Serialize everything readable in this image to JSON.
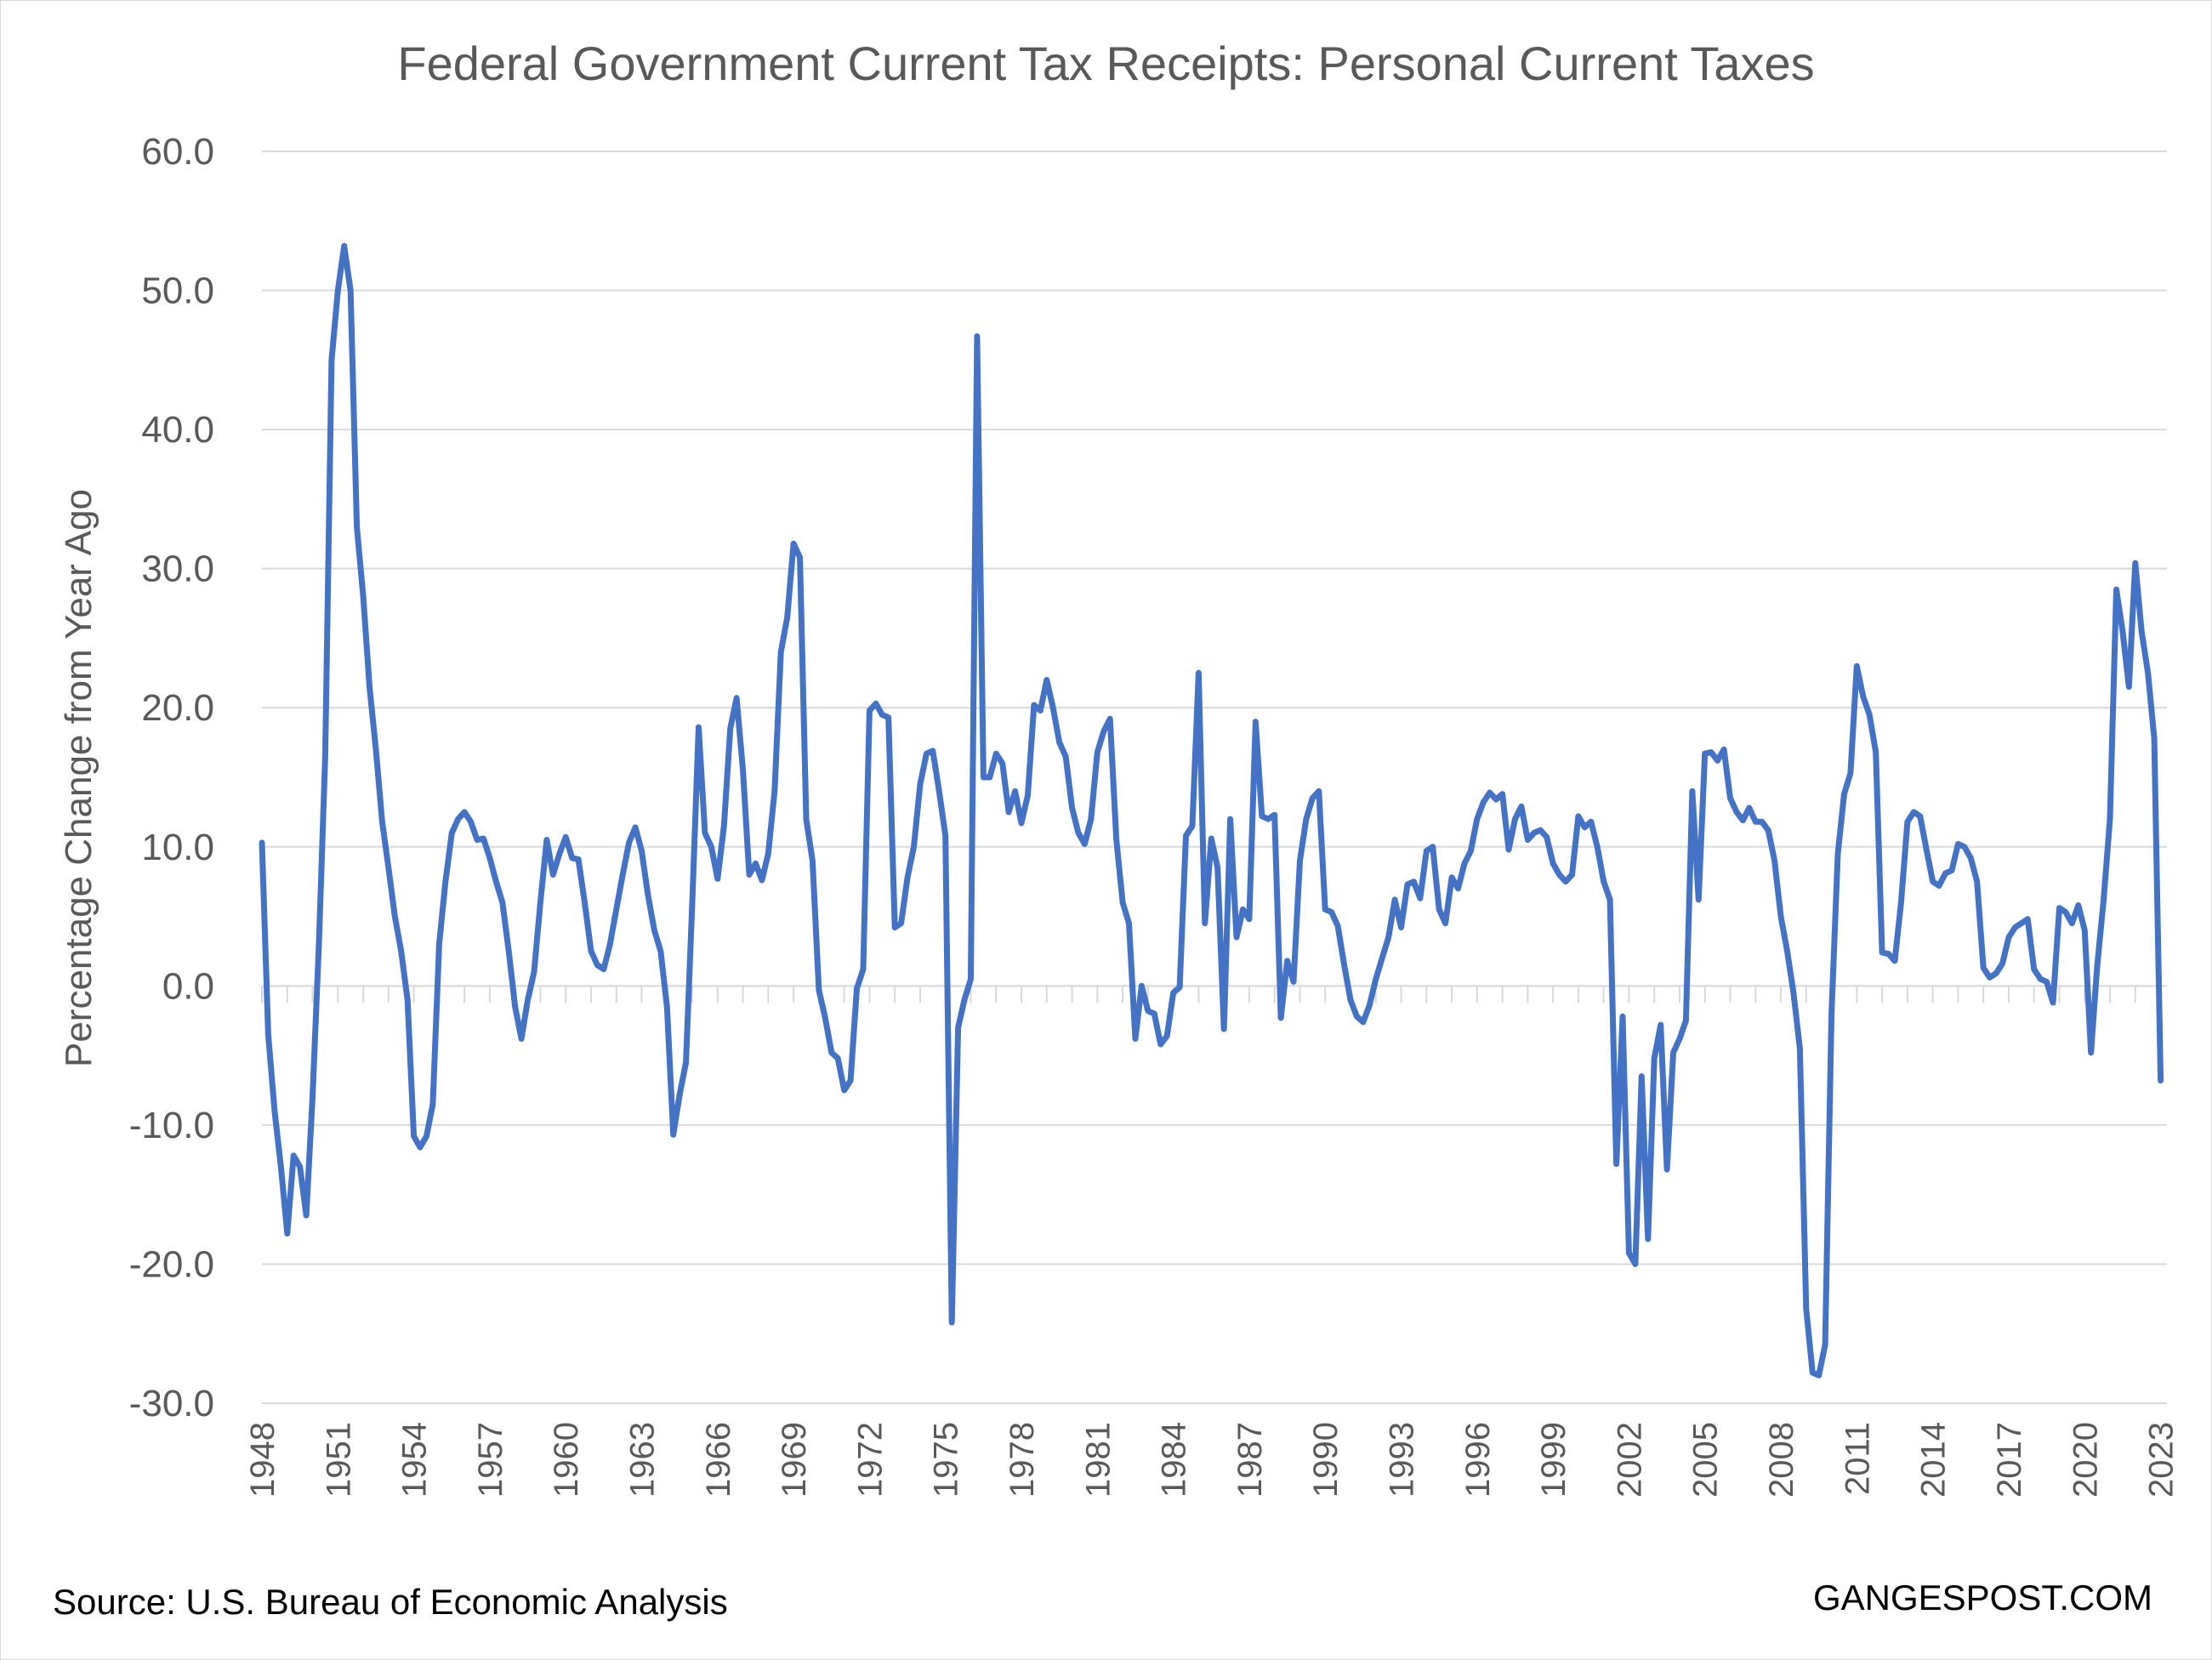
{
  "chart_data": {
    "type": "line",
    "title": "Federal Government Current Tax Receipts: Personal Current Taxes",
    "xlabel": "",
    "ylabel": "Percentage Change from Year Ago",
    "ylim": [
      -30,
      60
    ],
    "xlim": [
      1948,
      2023.25
    ],
    "yticks": [
      "-30.0",
      "-20.0",
      "-10.0",
      "0.0",
      "10.0",
      "20.0",
      "30.0",
      "40.0",
      "50.0",
      "60.0"
    ],
    "xticks": [
      "1948",
      "1951",
      "1954",
      "1957",
      "1960",
      "1963",
      "1966",
      "1969",
      "1972",
      "1975",
      "1978",
      "1981",
      "1984",
      "1987",
      "1990",
      "1993",
      "1996",
      "1999",
      "2002",
      "2005",
      "2008",
      "2011",
      "2014",
      "2017",
      "2020",
      "2023"
    ],
    "grid": true,
    "legend": "none",
    "series": [
      {
        "color": "#4472c4",
        "points": [
          [
            1948.0,
            10.3
          ],
          [
            1948.25,
            -3.5
          ],
          [
            1948.5,
            -9.0
          ],
          [
            1948.75,
            -13.0
          ],
          [
            1949.0,
            -17.8
          ],
          [
            1949.25,
            -12.2
          ],
          [
            1949.5,
            -13.0
          ],
          [
            1949.75,
            -16.5
          ],
          [
            1950.0,
            -8.0
          ],
          [
            1950.25,
            3.0
          ],
          [
            1950.5,
            16.5
          ],
          [
            1950.75,
            45.0
          ],
          [
            1951.0,
            50.0
          ],
          [
            1951.25,
            53.2
          ],
          [
            1951.5,
            50.0
          ],
          [
            1951.75,
            33.0
          ],
          [
            1952.0,
            28.0
          ],
          [
            1952.25,
            21.5
          ],
          [
            1952.5,
            17.0
          ],
          [
            1952.75,
            11.8
          ],
          [
            1953.0,
            8.5
          ],
          [
            1953.25,
            5.0
          ],
          [
            1953.5,
            2.5
          ],
          [
            1953.75,
            -1.0
          ],
          [
            1954.0,
            -10.8
          ],
          [
            1954.25,
            -11.6
          ],
          [
            1954.5,
            -10.8
          ],
          [
            1954.75,
            -8.5
          ],
          [
            1955.0,
            3.0
          ],
          [
            1955.25,
            7.5
          ],
          [
            1955.5,
            11.0
          ],
          [
            1955.75,
            12.0
          ],
          [
            1956.0,
            12.5
          ],
          [
            1956.25,
            11.8
          ],
          [
            1956.5,
            10.5
          ],
          [
            1956.75,
            10.6
          ],
          [
            1957.0,
            9.2
          ],
          [
            1957.25,
            7.5
          ],
          [
            1957.5,
            6.0
          ],
          [
            1957.75,
            2.5
          ],
          [
            1958.0,
            -1.5
          ],
          [
            1958.25,
            -3.8
          ],
          [
            1958.5,
            -1.0
          ],
          [
            1958.75,
            1.0
          ],
          [
            1959.0,
            6.0
          ],
          [
            1959.25,
            10.5
          ],
          [
            1959.5,
            8.0
          ],
          [
            1959.75,
            9.5
          ],
          [
            1960.0,
            10.7
          ],
          [
            1960.25,
            9.2
          ],
          [
            1960.5,
            9.1
          ],
          [
            1960.75,
            6.0
          ],
          [
            1961.0,
            2.5
          ],
          [
            1961.25,
            1.5
          ],
          [
            1961.5,
            1.2
          ],
          [
            1961.75,
            3.0
          ],
          [
            1962.0,
            5.5
          ],
          [
            1962.25,
            8.0
          ],
          [
            1962.5,
            10.3
          ],
          [
            1962.75,
            11.4
          ],
          [
            1963.0,
            9.7
          ],
          [
            1963.25,
            6.5
          ],
          [
            1963.5,
            4.0
          ],
          [
            1963.75,
            2.5
          ],
          [
            1964.0,
            -1.5
          ],
          [
            1964.25,
            -10.7
          ],
          [
            1964.5,
            -7.8
          ],
          [
            1964.75,
            -5.5
          ],
          [
            1965.0,
            6.0
          ],
          [
            1965.25,
            18.6
          ],
          [
            1965.5,
            11.0
          ],
          [
            1965.75,
            10.0
          ],
          [
            1966.0,
            7.7
          ],
          [
            1966.25,
            11.5
          ],
          [
            1966.5,
            18.5
          ],
          [
            1966.75,
            20.7
          ],
          [
            1967.0,
            15.5
          ],
          [
            1967.25,
            8.0
          ],
          [
            1967.5,
            8.8
          ],
          [
            1967.75,
            7.6
          ],
          [
            1968.0,
            9.5
          ],
          [
            1968.25,
            14.0
          ],
          [
            1968.5,
            24.0
          ],
          [
            1968.75,
            26.5
          ],
          [
            1969.0,
            31.8
          ],
          [
            1969.25,
            30.8
          ],
          [
            1969.5,
            12.0
          ],
          [
            1969.75,
            9.0
          ],
          [
            1970.0,
            -0.3
          ],
          [
            1970.25,
            -2.3
          ],
          [
            1970.5,
            -4.8
          ],
          [
            1970.75,
            -5.2
          ],
          [
            1971.0,
            -7.5
          ],
          [
            1971.25,
            -6.8
          ],
          [
            1971.5,
            -0.2
          ],
          [
            1971.75,
            1.2
          ],
          [
            1972.0,
            19.8
          ],
          [
            1972.25,
            20.3
          ],
          [
            1972.5,
            19.5
          ],
          [
            1972.75,
            19.3
          ],
          [
            1973.0,
            4.2
          ],
          [
            1973.25,
            4.5
          ],
          [
            1973.5,
            7.8
          ],
          [
            1973.75,
            10.0
          ],
          [
            1974.0,
            14.5
          ],
          [
            1974.25,
            16.7
          ],
          [
            1974.5,
            16.9
          ],
          [
            1974.75,
            14.0
          ],
          [
            1975.0,
            10.8
          ],
          [
            1975.25,
            -24.2
          ],
          [
            1975.5,
            -3.0
          ],
          [
            1975.75,
            -1.0
          ],
          [
            1976.0,
            0.5
          ],
          [
            1976.25,
            46.7
          ],
          [
            1976.5,
            15.0
          ],
          [
            1976.75,
            15.0
          ],
          [
            1977.0,
            16.7
          ],
          [
            1977.25,
            16.0
          ],
          [
            1977.5,
            12.5
          ],
          [
            1977.75,
            14.0
          ],
          [
            1978.0,
            11.7
          ],
          [
            1978.25,
            13.7
          ],
          [
            1978.5,
            20.2
          ],
          [
            1978.75,
            19.8
          ],
          [
            1979.0,
            22.0
          ],
          [
            1979.25,
            20.0
          ],
          [
            1979.5,
            17.5
          ],
          [
            1979.75,
            16.5
          ],
          [
            1980.0,
            12.8
          ],
          [
            1980.25,
            11.0
          ],
          [
            1980.5,
            10.2
          ],
          [
            1980.75,
            12.0
          ],
          [
            1981.0,
            16.8
          ],
          [
            1981.25,
            18.3
          ],
          [
            1981.5,
            19.2
          ],
          [
            1981.75,
            10.5
          ],
          [
            1982.0,
            6.0
          ],
          [
            1982.25,
            4.5
          ],
          [
            1982.5,
            -3.8
          ],
          [
            1982.75,
            0.0
          ],
          [
            1983.0,
            -1.8
          ],
          [
            1983.25,
            -2.0
          ],
          [
            1983.5,
            -4.2
          ],
          [
            1983.75,
            -3.6
          ],
          [
            1984.0,
            -0.5
          ],
          [
            1984.25,
            -0.1
          ],
          [
            1984.5,
            10.8
          ],
          [
            1984.75,
            11.5
          ],
          [
            1985.0,
            22.5
          ],
          [
            1985.25,
            4.5
          ],
          [
            1985.5,
            10.6
          ],
          [
            1985.75,
            8.5
          ],
          [
            1986.0,
            -3.1
          ],
          [
            1986.25,
            12.0
          ],
          [
            1986.5,
            3.5
          ],
          [
            1986.75,
            5.5
          ],
          [
            1987.0,
            4.8
          ],
          [
            1987.25,
            19.0
          ],
          [
            1987.5,
            12.2
          ],
          [
            1987.75,
            12.0
          ],
          [
            1988.0,
            12.3
          ],
          [
            1988.25,
            -2.3
          ],
          [
            1988.5,
            1.8
          ],
          [
            1988.75,
            0.3
          ],
          [
            1989.0,
            9.0
          ],
          [
            1989.25,
            12.0
          ],
          [
            1989.5,
            13.5
          ],
          [
            1989.75,
            14.0
          ],
          [
            1990.0,
            5.5
          ],
          [
            1990.25,
            5.3
          ],
          [
            1990.5,
            4.3
          ],
          [
            1990.75,
            1.5
          ],
          [
            1991.0,
            -1.0
          ],
          [
            1991.25,
            -2.2
          ],
          [
            1991.5,
            -2.6
          ],
          [
            1991.75,
            -1.4
          ],
          [
            1992.0,
            0.5
          ],
          [
            1992.25,
            2.0
          ],
          [
            1992.5,
            3.5
          ],
          [
            1992.75,
            6.2
          ],
          [
            1993.0,
            4.2
          ],
          [
            1993.25,
            7.3
          ],
          [
            1993.5,
            7.5
          ],
          [
            1993.75,
            6.3
          ],
          [
            1994.0,
            9.7
          ],
          [
            1994.25,
            10.0
          ],
          [
            1994.5,
            5.5
          ],
          [
            1994.75,
            4.5
          ],
          [
            1995.0,
            7.8
          ],
          [
            1995.25,
            7.0
          ],
          [
            1995.5,
            8.8
          ],
          [
            1995.75,
            9.7
          ],
          [
            1996.0,
            12.0
          ],
          [
            1996.25,
            13.2
          ],
          [
            1996.5,
            13.9
          ],
          [
            1996.75,
            13.4
          ],
          [
            1997.0,
            13.8
          ],
          [
            1997.25,
            9.8
          ],
          [
            1997.5,
            12.0
          ],
          [
            1997.75,
            12.9
          ],
          [
            1998.0,
            10.5
          ],
          [
            1998.25,
            11.0
          ],
          [
            1998.5,
            11.2
          ],
          [
            1998.75,
            10.7
          ],
          [
            1999.0,
            8.8
          ],
          [
            1999.25,
            8.0
          ],
          [
            1999.5,
            7.5
          ],
          [
            1999.75,
            8.0
          ],
          [
            2000.0,
            12.2
          ],
          [
            2000.25,
            11.4
          ],
          [
            2000.5,
            11.8
          ],
          [
            2000.75,
            10.0
          ],
          [
            2001.0,
            7.5
          ],
          [
            2001.25,
            6.2
          ],
          [
            2001.5,
            -12.8
          ],
          [
            2001.75,
            -2.2
          ],
          [
            2002.0,
            -19.2
          ],
          [
            2002.25,
            -20.0
          ],
          [
            2002.5,
            -6.5
          ],
          [
            2002.75,
            -18.2
          ],
          [
            2003.0,
            -5.2
          ],
          [
            2003.25,
            -2.8
          ],
          [
            2003.5,
            -13.2
          ],
          [
            2003.75,
            -4.8
          ],
          [
            2004.0,
            -3.8
          ],
          [
            2004.25,
            -2.5
          ],
          [
            2004.5,
            14.0
          ],
          [
            2004.75,
            6.2
          ],
          [
            2005.0,
            16.7
          ],
          [
            2005.25,
            16.8
          ],
          [
            2005.5,
            16.2
          ],
          [
            2005.75,
            17.0
          ],
          [
            2006.0,
            13.5
          ],
          [
            2006.25,
            12.5
          ],
          [
            2006.5,
            11.9
          ],
          [
            2006.75,
            12.8
          ],
          [
            2007.0,
            11.8
          ],
          [
            2007.25,
            11.8
          ],
          [
            2007.5,
            11.2
          ],
          [
            2007.75,
            9.0
          ],
          [
            2008.0,
            5.0
          ],
          [
            2008.25,
            2.5
          ],
          [
            2008.5,
            -0.5
          ],
          [
            2008.75,
            -4.5
          ],
          [
            2009.0,
            -23.2
          ],
          [
            2009.25,
            -27.8
          ],
          [
            2009.5,
            -28.0
          ],
          [
            2009.75,
            -25.8
          ],
          [
            2010.0,
            -2.0
          ],
          [
            2010.25,
            9.5
          ],
          [
            2010.5,
            13.8
          ],
          [
            2010.75,
            15.3
          ],
          [
            2011.0,
            23.0
          ],
          [
            2011.25,
            20.8
          ],
          [
            2011.5,
            19.5
          ],
          [
            2011.75,
            16.8
          ],
          [
            2012.0,
            2.4
          ],
          [
            2012.25,
            2.3
          ],
          [
            2012.5,
            1.8
          ],
          [
            2012.75,
            6.0
          ],
          [
            2013.0,
            11.8
          ],
          [
            2013.25,
            12.5
          ],
          [
            2013.5,
            12.2
          ],
          [
            2013.75,
            9.8
          ],
          [
            2014.0,
            7.5
          ],
          [
            2014.25,
            7.2
          ],
          [
            2014.5,
            8.1
          ],
          [
            2014.75,
            8.3
          ],
          [
            2015.0,
            10.2
          ],
          [
            2015.25,
            10.0
          ],
          [
            2015.5,
            9.2
          ],
          [
            2015.75,
            7.5
          ],
          [
            2016.0,
            1.3
          ],
          [
            2016.25,
            0.6
          ],
          [
            2016.5,
            0.9
          ],
          [
            2016.75,
            1.6
          ],
          [
            2017.0,
            3.5
          ],
          [
            2017.25,
            4.2
          ],
          [
            2017.5,
            4.5
          ],
          [
            2017.75,
            4.8
          ],
          [
            2018.0,
            1.2
          ],
          [
            2018.25,
            0.5
          ],
          [
            2018.5,
            0.3
          ],
          [
            2018.75,
            -1.2
          ],
          [
            2019.0,
            5.6
          ],
          [
            2019.25,
            5.3
          ],
          [
            2019.5,
            4.5
          ],
          [
            2019.75,
            5.8
          ],
          [
            2020.0,
            4.0
          ],
          [
            2020.25,
            -4.8
          ],
          [
            2020.5,
            1.5
          ],
          [
            2020.75,
            6.2
          ],
          [
            2021.0,
            12.0
          ],
          [
            2021.25,
            28.5
          ],
          [
            2021.5,
            25.5
          ],
          [
            2021.75,
            21.5
          ],
          [
            2022.0,
            30.4
          ],
          [
            2022.25,
            25.5
          ],
          [
            2022.5,
            22.5
          ],
          [
            2022.75,
            17.8
          ],
          [
            2023.0,
            -6.8
          ]
        ]
      }
    ]
  },
  "footer": {
    "source": "Source: U.S. Bureau of Economic Analysis",
    "watermark": "GANGESPOST.COM"
  }
}
